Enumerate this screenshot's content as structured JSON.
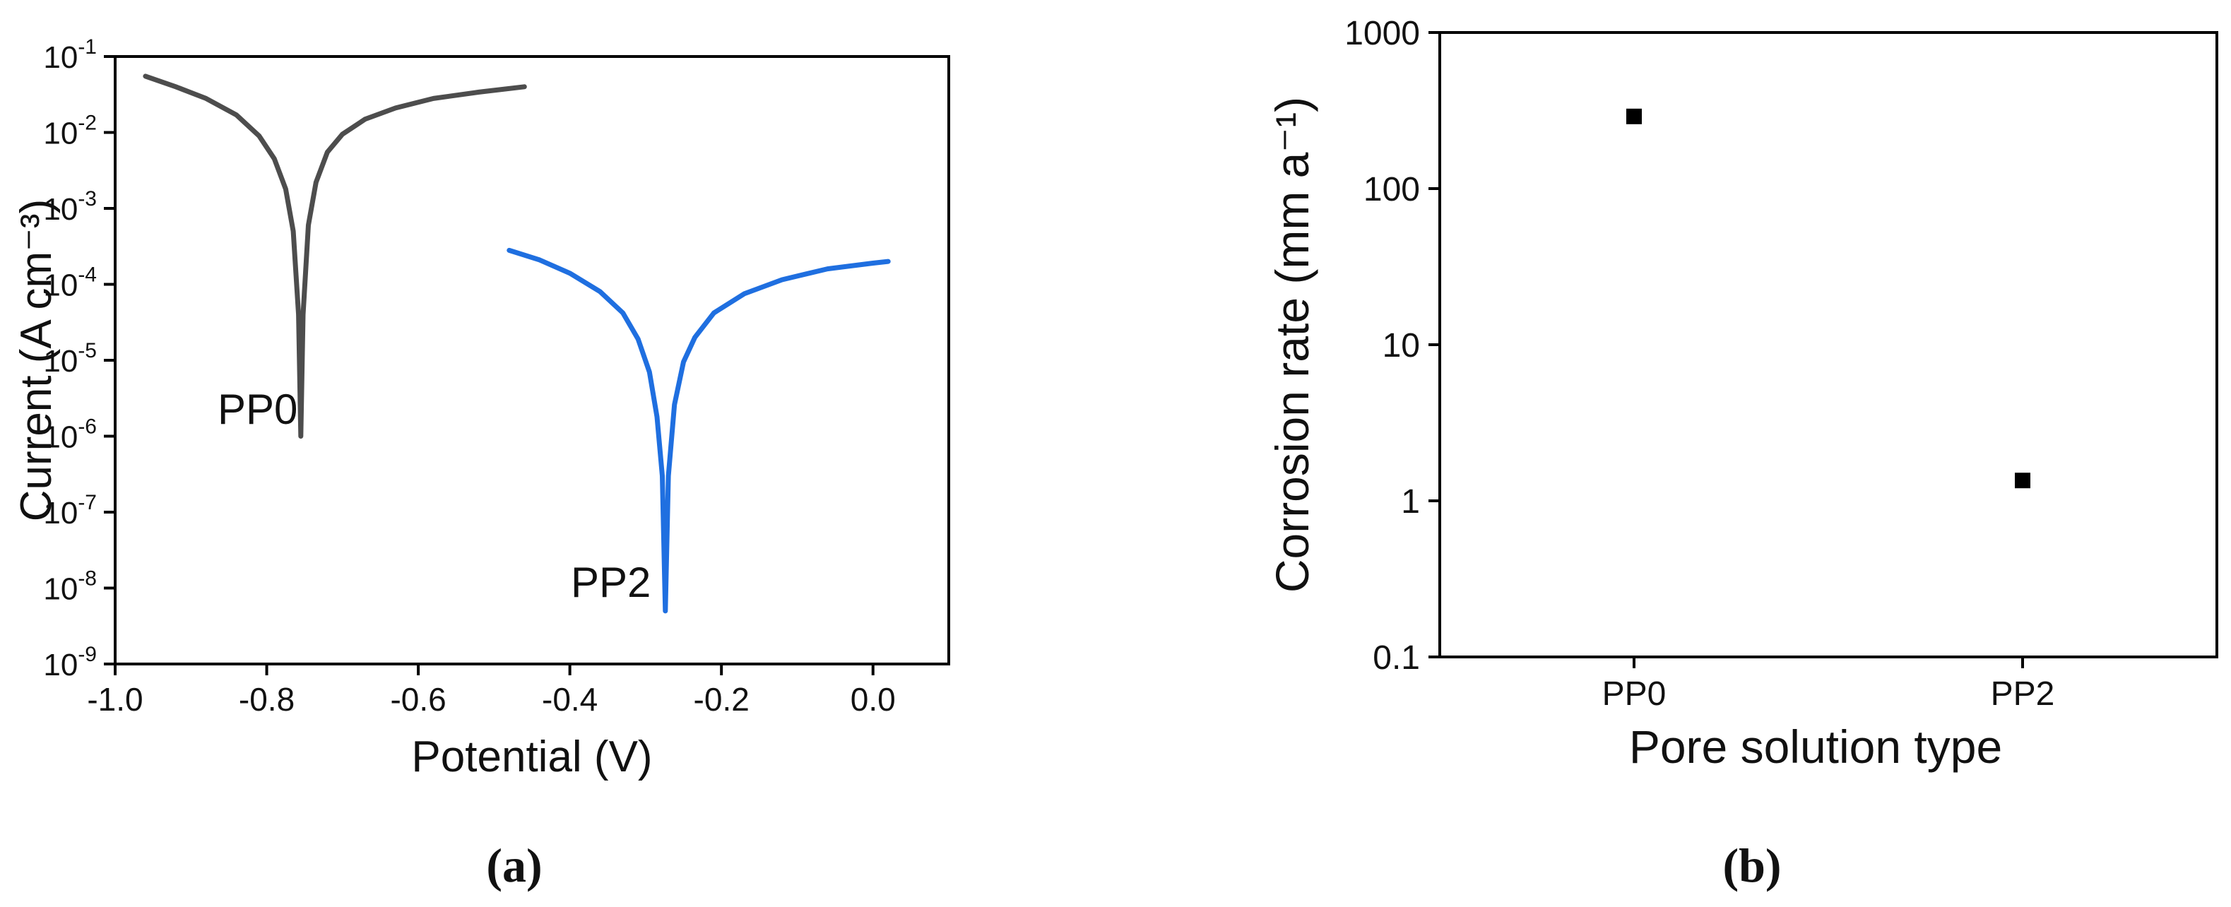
{
  "colors": {
    "pp0_curve": "#4d4d4d",
    "pp2_curve": "#1f6fe0",
    "marker": "#000000",
    "axis": "#000000"
  },
  "panels": {
    "a_label": "(a)",
    "b_label": "(b)"
  },
  "chart_data": [
    {
      "type": "line",
      "panel": "a",
      "xlabel": "Potential (V)",
      "ylabel": "Current (A cm⁻³)",
      "xlim": [
        -1.0,
        0.1
      ],
      "ylim": [
        1e-09,
        0.1
      ],
      "yscale": "log",
      "xticks": [
        -1.0,
        -0.8,
        -0.6,
        -0.4,
        -0.2,
        0.0
      ],
      "xtick_labels": [
        "-1.0",
        "-0.8",
        "-0.6",
        "-0.4",
        "-0.2",
        "0.0"
      ],
      "ytick_exponents": [
        -9,
        -8,
        -7,
        -6,
        -5,
        -4,
        -3,
        -2,
        -1
      ],
      "ytick_labels": [
        "10-9",
        "10-8",
        "10-7",
        "10-6",
        "10-5",
        "10-4",
        "10-3",
        "10-2",
        "10-1"
      ],
      "grid": false,
      "legend": "none",
      "annotations": [
        "PP0",
        "PP2"
      ],
      "series": [
        {
          "label": "PP0",
          "color": "#4d4d4d",
          "x": [
            -0.96,
            -0.92,
            -0.88,
            -0.84,
            -0.81,
            -0.79,
            -0.775,
            -0.765,
            -0.758,
            -0.755,
            -0.752,
            -0.745,
            -0.735,
            -0.72,
            -0.7,
            -0.67,
            -0.63,
            -0.58,
            -0.52,
            -0.46
          ],
          "y": [
            0.055,
            0.04,
            0.028,
            0.017,
            0.009,
            0.0045,
            0.0018,
            0.0005,
            4e-05,
            1e-06,
            4e-05,
            0.0006,
            0.0022,
            0.0055,
            0.0095,
            0.015,
            0.021,
            0.028,
            0.034,
            0.04
          ]
        },
        {
          "label": "PP2",
          "color": "#1f6fe0",
          "x": [
            -0.48,
            -0.44,
            -0.4,
            -0.36,
            -0.33,
            -0.31,
            -0.295,
            -0.285,
            -0.278,
            -0.274,
            -0.27,
            -0.262,
            -0.25,
            -0.235,
            -0.21,
            -0.17,
            -0.12,
            -0.06,
            0.0,
            0.02
          ],
          "y": [
            0.00028,
            0.00021,
            0.00014,
            8e-05,
            4.2e-05,
            1.9e-05,
            7e-06,
            1.8e-06,
            3e-07,
            5e-09,
            3e-07,
            2.6e-06,
            9.5e-06,
            2e-05,
            4.2e-05,
            7.5e-05,
            0.000115,
            0.00016,
            0.00019,
            0.0002
          ]
        }
      ]
    },
    {
      "type": "scatter",
      "panel": "b",
      "xlabel": "Pore solution type",
      "ylabel": "Corrosion rate (mm a⁻¹)",
      "categories": [
        "PP0",
        "PP2"
      ],
      "values": [
        290,
        1.35
      ],
      "yscale": "log",
      "ylim": [
        0.1,
        1000
      ],
      "ytick_values": [
        0.1,
        1,
        10,
        100,
        1000
      ],
      "ytick_labels": [
        "0.1",
        "1",
        "10",
        "100",
        "1000"
      ],
      "grid": false,
      "legend": "none",
      "marker": "square"
    }
  ]
}
